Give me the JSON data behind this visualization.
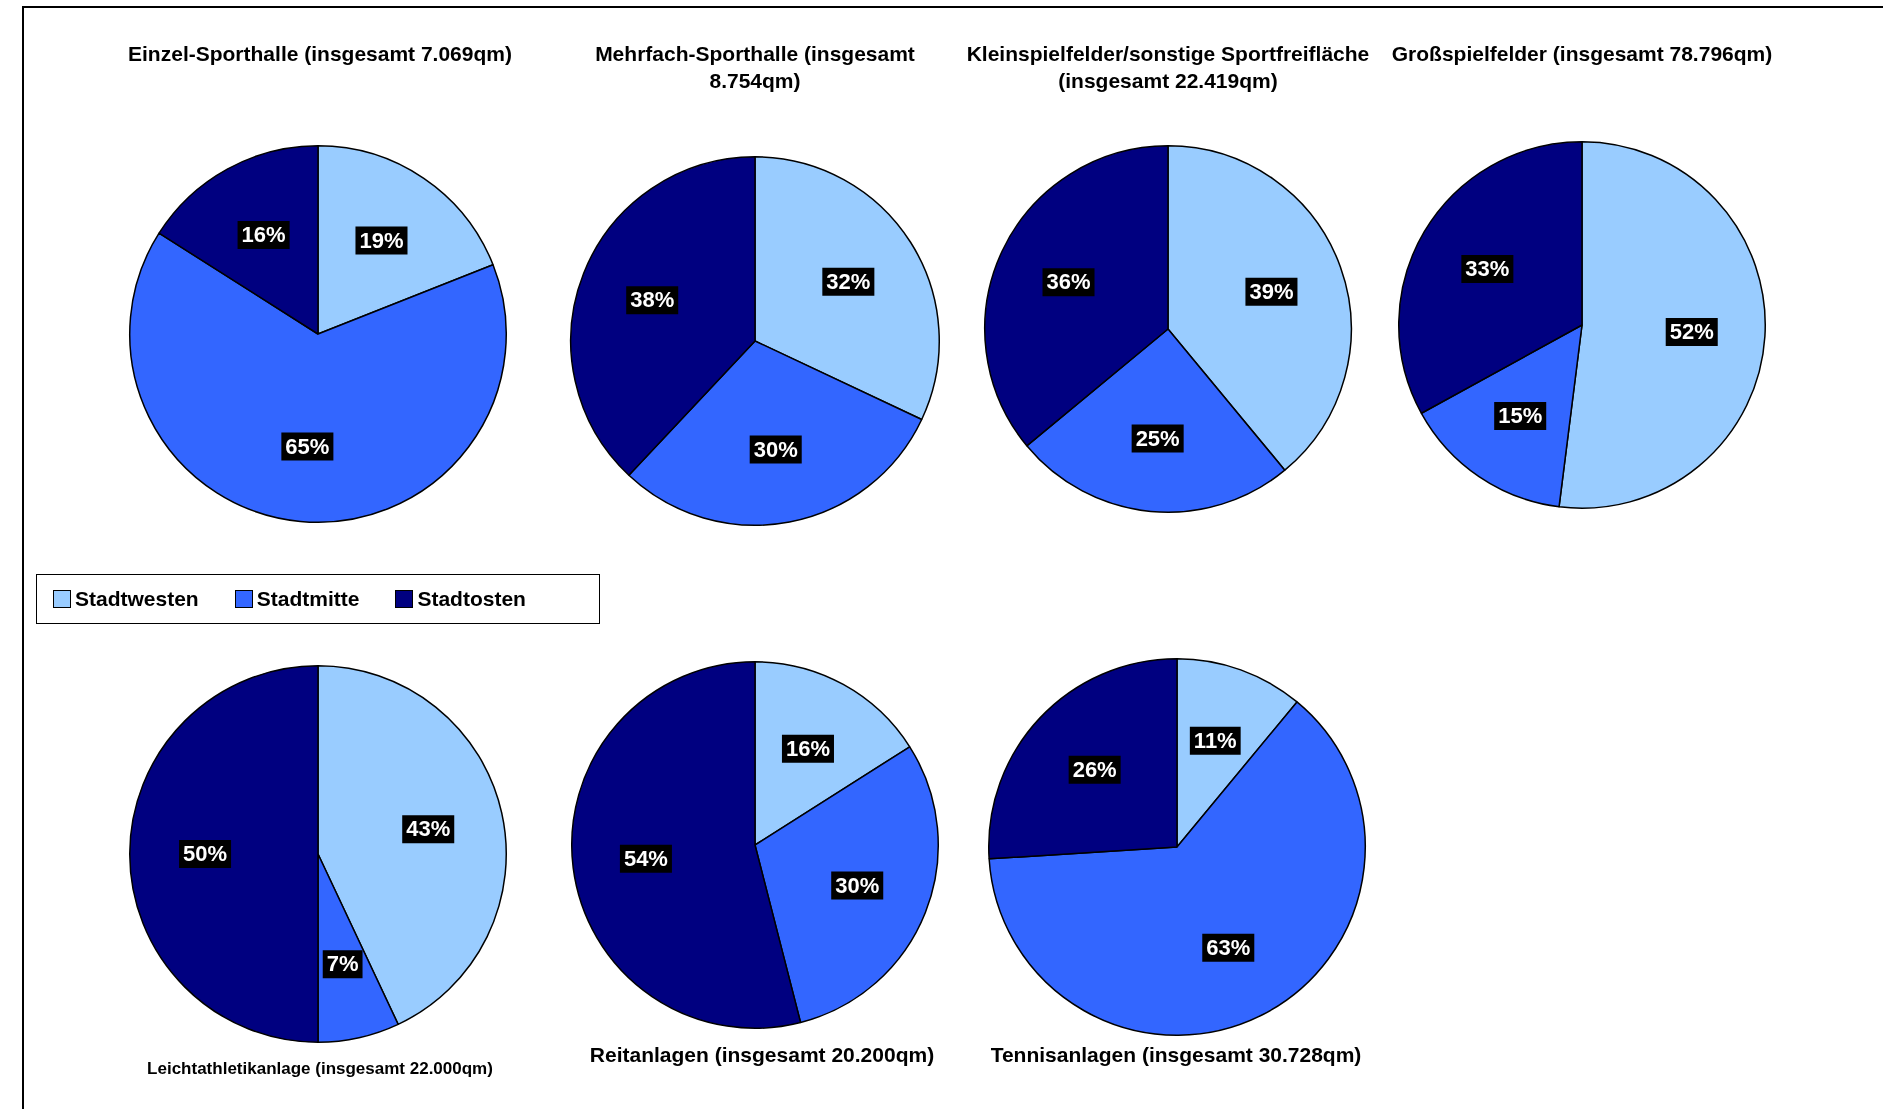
{
  "chart_data": [
    {
      "type": "pie",
      "title": "Einzel-Sporthalle (insgesamt 7.069qm)",
      "categories": [
        "Stadtwesten",
        "Stadtmitte",
        "Stadtosten"
      ],
      "values": [
        19,
        65,
        16
      ],
      "value_labels": [
        "19%",
        "65%",
        "16%"
      ],
      "colors": [
        "#99ccff",
        "#3366ff",
        "#000080"
      ],
      "legend": "bottom left"
    },
    {
      "type": "pie",
      "title": "Mehrfach-Sporthalle (insgesamt 8.754qm)",
      "values": [
        32,
        30,
        38
      ],
      "value_labels": [
        "32%",
        "30%",
        "38%"
      ],
      "colors": [
        "#99ccff",
        "#3366ff",
        "#000080"
      ]
    },
    {
      "type": "pie",
      "title": "Kleinspielfelder/sonstige Sportfreifläche (insgesamt 22.419qm)",
      "values": [
        39,
        25,
        36
      ],
      "value_labels": [
        "39%",
        "25%",
        "36%"
      ],
      "colors": [
        "#99ccff",
        "#3366ff",
        "#000080"
      ]
    },
    {
      "type": "pie",
      "title": "Großspielfelder (insgesamt 78.796qm)",
      "values": [
        52,
        15,
        33
      ],
      "value_labels": [
        "52%",
        "15%",
        "33%"
      ],
      "colors": [
        "#99ccff",
        "#3366ff",
        "#000080"
      ]
    },
    {
      "type": "pie",
      "title": "Leichtathletikanlage (insgesamt 22.000qm)",
      "values": [
        43,
        7,
        50
      ],
      "value_labels": [
        "43%",
        "7%",
        "50%"
      ],
      "colors": [
        "#99ccff",
        "#3366ff",
        "#000080"
      ]
    },
    {
      "type": "pie",
      "title": "Reitanlagen (insgesamt 20.200qm)",
      "values": [
        16,
        30,
        54
      ],
      "value_labels": [
        "16%",
        "30%",
        "54%"
      ],
      "colors": [
        "#99ccff",
        "#3366ff",
        "#000080"
      ]
    },
    {
      "type": "pie",
      "title": "Tennisanlagen (insgesamt 30.728qm)",
      "values": [
        11,
        63,
        26
      ],
      "value_labels": [
        "11%",
        "63%",
        "26%"
      ],
      "colors": [
        "#99ccff",
        "#3366ff",
        "#000080"
      ]
    }
  ]
}
